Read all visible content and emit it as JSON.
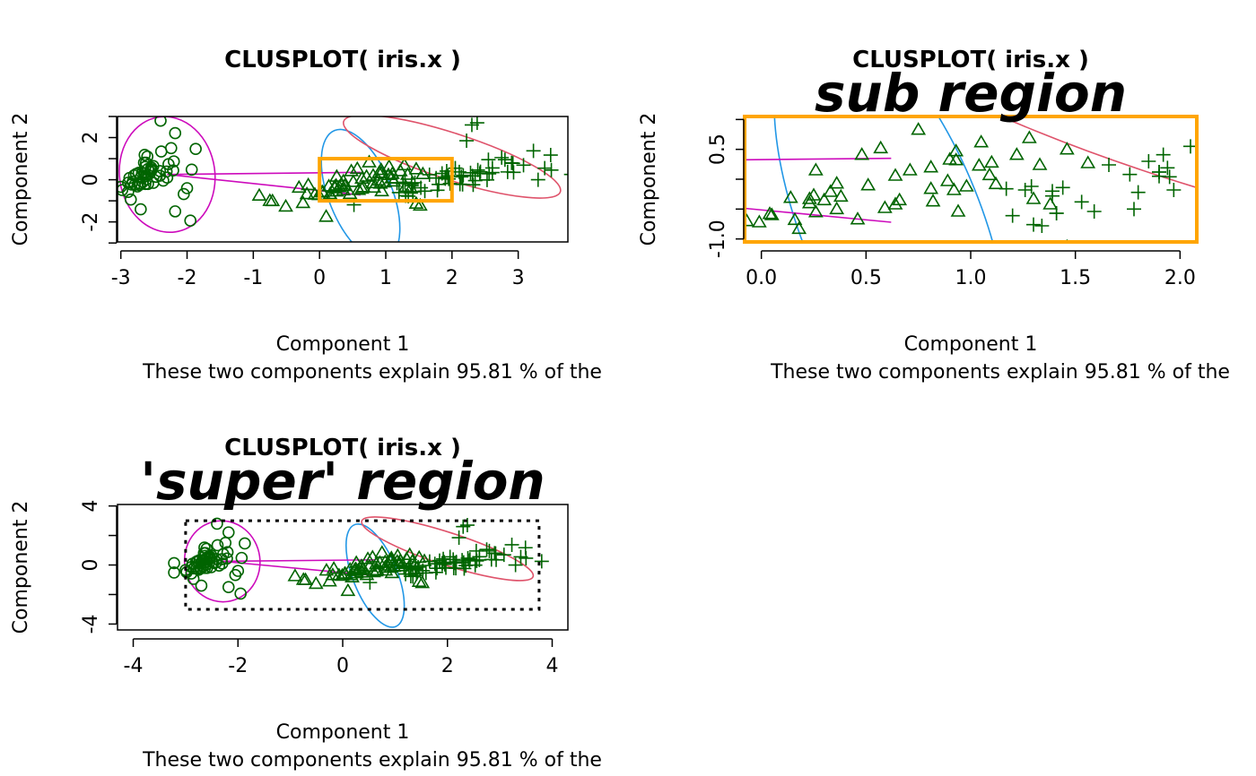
{
  "colors": {
    "points": "#006400",
    "ellipse_setosa": "#cd0bbc",
    "ellipse_versicolor": "#2297e6",
    "ellipse_virginica": "#df536b",
    "link": "#cd0bbc",
    "highlight": "#ffa500"
  },
  "chart_data": [
    {
      "type": "scatter",
      "panel": "main",
      "title": "CLUSPLOT( iris.x )",
      "xlabel": "Component 1",
      "ylabel": "Component 2",
      "subtitle": "These two components explain 95.81 % of the",
      "xlim": [
        -3.05,
        3.75
      ],
      "ylim": [
        -2.95,
        3.0
      ],
      "xticks": [
        -3,
        -2,
        -1,
        0,
        1,
        2,
        3
      ],
      "yticks": [
        -2,
        0,
        2
      ],
      "ytick_labels": [
        "-2",
        "0",
        "2"
      ],
      "yminor_ticks": [
        -3,
        -1,
        1,
        3
      ],
      "highlight_box": [
        0,
        2,
        -1,
        1
      ],
      "grid": false
    },
    {
      "type": "scatter",
      "panel": "sub",
      "title": "CLUSPLOT( iris.x )",
      "annotation": "sub region",
      "xlabel": "Component 1",
      "ylabel": "Component 2",
      "subtitle": "These two components explain 95.81 % of the",
      "xlim": [
        -0.08,
        2.08
      ],
      "ylim": [
        -1.05,
        1.05
      ],
      "xticks": [
        0.0,
        0.5,
        1.0,
        1.5,
        2.0
      ],
      "xtick_labels": [
        "0.0",
        "0.5",
        "1.0",
        "1.5",
        "2.0"
      ],
      "yticks": [
        -1.0,
        0.5
      ],
      "ytick_labels": [
        "-1.0",
        "0.5"
      ],
      "yminor_ticks": [
        1.0,
        0.0,
        -0.5
      ],
      "grid": false
    },
    {
      "type": "scatter",
      "panel": "super",
      "title": "CLUSPLOT( iris.x )",
      "annotation": "'super' region",
      "xlabel": "Component 1",
      "ylabel": "Component 2",
      "subtitle": "These two components explain 95.81 % of the",
      "xlim": [
        -4.3,
        4.3
      ],
      "ylim": [
        -4.4,
        4.1
      ],
      "xticks": [
        -4,
        -2,
        0,
        2,
        4
      ],
      "yticks": [
        -4,
        0,
        4
      ],
      "ytick_labels": [
        "-4",
        "0",
        "4"
      ],
      "yminor_ticks": [
        -2,
        2
      ],
      "dashed_box": [
        -3.0,
        3.75,
        -3.0,
        3.0
      ],
      "grid": false
    }
  ],
  "clusters": {
    "setosa": {
      "pch": "circle",
      "ellipse": {
        "cx": -2.3,
        "cy": 0.25,
        "rx": 0.72,
        "ry": 2.75,
        "angle": -8
      },
      "points": [
        [
          -2.68,
          0.32
        ],
        [
          -2.71,
          -0.18
        ],
        [
          -2.89,
          -0.14
        ],
        [
          -2.75,
          -0.32
        ],
        [
          -2.73,
          0.33
        ],
        [
          -2.28,
          0.74
        ],
        [
          -2.82,
          -0.09
        ],
        [
          -2.63,
          0.16
        ],
        [
          -2.89,
          -0.58
        ],
        [
          -2.67,
          -0.11
        ],
        [
          -2.51,
          0.65
        ],
        [
          -2.61,
          0.02
        ],
        [
          -2.79,
          -0.24
        ],
        [
          -3.22,
          -0.51
        ],
        [
          -2.64,
          1.18
        ],
        [
          -2.39,
          1.34
        ],
        [
          -2.62,
          0.81
        ],
        [
          -2.65,
          0.31
        ],
        [
          -2.2,
          0.87
        ],
        [
          -2.59,
          0.51
        ],
        [
          -2.31,
          0.39
        ],
        [
          -2.54,
          0.43
        ],
        [
          -3.22,
          0.13
        ],
        [
          -2.3,
          0.1
        ],
        [
          -2.36,
          -0.04
        ],
        [
          -2.51,
          -0.15
        ],
        [
          -2.47,
          0.14
        ],
        [
          -2.56,
          0.37
        ],
        [
          -2.64,
          0.31
        ],
        [
          -2.63,
          -0.2
        ],
        [
          -2.59,
          -0.2
        ],
        [
          -2.41,
          0.41
        ],
        [
          -2.65,
          0.81
        ],
        [
          -2.6,
          1.1
        ],
        [
          -2.67,
          -0.11
        ],
        [
          -2.87,
          0.08
        ],
        [
          -2.63,
          0.61
        ],
        [
          -2.8,
          0.21
        ],
        [
          -2.98,
          -0.49
        ],
        [
          -2.59,
          0.23
        ],
        [
          -2.77,
          0.27
        ],
        [
          -2.85,
          -0.94
        ],
        [
          -3.0,
          -0.34
        ],
        [
          -2.41,
          0.19
        ],
        [
          -2.21,
          0.44
        ],
        [
          -2.72,
          -0.25
        ],
        [
          -2.54,
          0.5
        ],
        [
          -2.84,
          -0.23
        ],
        [
          -2.54,
          0.58
        ],
        [
          -2.7,
          0.11
        ],
        [
          -1.95,
          -1.94
        ],
        [
          -2.18,
          2.21
        ],
        [
          -2.4,
          2.8
        ],
        [
          -1.87,
          1.46
        ],
        [
          -2.18,
          -1.5
        ],
        [
          -2.0,
          -0.4
        ],
        [
          -1.93,
          0.48
        ],
        [
          -2.05,
          -0.68
        ],
        [
          -2.24,
          1.5
        ],
        [
          -2.7,
          -1.4
        ]
      ]
    },
    "versicolor": {
      "pch": "triangle",
      "ellipse": {
        "cx": 0.62,
        "cy": -0.72,
        "rx": 1.05,
        "ry": 1.5,
        "angle": 68
      },
      "points": [
        [
          1.28,
          0.69
        ],
        [
          0.93,
          0.32
        ],
        [
          1.46,
          0.5
        ],
        [
          0.18,
          -0.83
        ],
        [
          1.09,
          0.07
        ],
        [
          0.64,
          -0.42
        ],
        [
          1.1,
          0.28
        ],
        [
          -0.75,
          -1.0
        ],
        [
          1.04,
          0.23
        ],
        [
          -0.01,
          -0.72
        ],
        [
          -0.51,
          -1.27
        ],
        [
          0.51,
          -0.1
        ],
        [
          0.26,
          -0.55
        ],
        [
          0.98,
          -0.12
        ],
        [
          -0.17,
          -0.25
        ],
        [
          0.93,
          0.47
        ],
        [
          0.66,
          -0.35
        ],
        [
          0.23,
          -0.33
        ],
        [
          0.94,
          -0.54
        ],
        [
          0.04,
          -0.58
        ],
        [
          1.12,
          -0.08
        ],
        [
          0.36,
          -0.07
        ],
        [
          1.3,
          -0.33
        ],
        [
          0.92,
          -0.18
        ],
        [
          0.71,
          0.15
        ],
        [
          0.9,
          0.33
        ],
        [
          1.33,
          0.24
        ],
        [
          1.56,
          0.27
        ],
        [
          0.81,
          -0.16
        ],
        [
          -0.31,
          -0.37
        ],
        [
          -0.07,
          -0.7
        ],
        [
          -0.19,
          -0.68
        ],
        [
          0.14,
          -0.31
        ],
        [
          1.38,
          -0.42
        ],
        [
          0.59,
          -0.48
        ],
        [
          0.81,
          0.2
        ],
        [
          1.22,
          0.41
        ],
        [
          0.82,
          -0.37
        ],
        [
          0.25,
          -0.27
        ],
        [
          0.16,
          -0.68
        ],
        [
          0.46,
          -0.67
        ],
        [
          0.89,
          -0.03
        ],
        [
          0.23,
          -0.4
        ],
        [
          -0.71,
          -1.01
        ],
        [
          0.36,
          -0.5
        ],
        [
          0.33,
          -0.21
        ],
        [
          0.38,
          -0.29
        ],
        [
          0.64,
          0.06
        ],
        [
          -0.91,
          -0.75
        ],
        [
          0.3,
          -0.35
        ],
        [
          1.46,
          -1.13
        ],
        [
          1.52,
          -1.22
        ],
        [
          0.1,
          -1.75
        ],
        [
          0.75,
          0.83
        ],
        [
          0.57,
          0.52
        ],
        [
          -0.25,
          -1.1
        ],
        [
          0.05,
          -0.6
        ],
        [
          1.05,
          0.62
        ],
        [
          0.48,
          0.41
        ],
        [
          0.26,
          0.15
        ]
      ]
    },
    "virginica": {
      "pch": "plus",
      "ellipse": {
        "cx": 2.0,
        "cy": 1.1,
        "rx": 1.72,
        "ry": 1.1,
        "angle": 18
      },
      "points": [
        [
          2.53,
          -0.01
        ],
        [
          1.41,
          -0.57
        ],
        [
          2.61,
          0.34
        ],
        [
          1.97,
          -0.18
        ],
        [
          2.35,
          -0.04
        ],
        [
          3.4,
          0.55
        ],
        [
          0.52,
          -1.19
        ],
        [
          2.93,
          0.35
        ],
        [
          2.32,
          -0.24
        ],
        [
          2.92,
          0.78
        ],
        [
          1.66,
          0.24
        ],
        [
          1.8,
          -0.22
        ],
        [
          2.17,
          0.21
        ],
        [
          1.34,
          -0.78
        ],
        [
          1.59,
          -0.54
        ],
        [
          1.9,
          0.12
        ],
        [
          1.95,
          0.04
        ],
        [
          3.49,
          1.17
        ],
        [
          3.8,
          0.25
        ],
        [
          1.3,
          -0.76
        ],
        [
          2.43,
          0.38
        ],
        [
          1.2,
          -0.61
        ],
        [
          3.5,
          0.46
        ],
        [
          1.39,
          -0.2
        ],
        [
          2.28,
          0.33
        ],
        [
          2.61,
          0.56
        ],
        [
          1.26,
          -0.18
        ],
        [
          1.29,
          -0.12
        ],
        [
          2.12,
          -0.21
        ],
        [
          2.39,
          0.46
        ],
        [
          2.84,
          0.37
        ],
        [
          3.23,
          1.37
        ],
        [
          2.16,
          -0.22
        ],
        [
          1.44,
          -0.14
        ],
        [
          1.78,
          -0.5
        ],
        [
          3.08,
          0.69
        ],
        [
          2.14,
          0.14
        ],
        [
          1.9,
          0.05
        ],
        [
          1.17,
          -0.16
        ],
        [
          2.11,
          0.37
        ],
        [
          2.31,
          0.18
        ],
        [
          1.92,
          0.41
        ],
        [
          1.41,
          -0.57
        ],
        [
          2.56,
          0.28
        ],
        [
          2.42,
          0.3
        ],
        [
          1.94,
          0.19
        ],
        [
          1.53,
          -0.38
        ],
        [
          1.76,
          0.08
        ],
        [
          1.9,
          0.12
        ],
        [
          1.39,
          -0.28
        ],
        [
          2.3,
          2.6
        ],
        [
          2.38,
          2.7
        ],
        [
          2.22,
          1.85
        ],
        [
          2.8,
          0.95
        ],
        [
          2.9,
          0.8
        ],
        [
          3.3,
          0.0
        ],
        [
          2.55,
          0.95
        ],
        [
          2.05,
          0.55
        ],
        [
          1.85,
          0.3
        ],
        [
          2.75,
          1.05
        ]
      ]
    },
    "links": [
      {
        "from": "setosa",
        "to": "versicolor",
        "points": [
          [
            -2.3,
            0.25
          ],
          [
            0.62,
            0.35
          ]
        ]
      },
      {
        "from": "setosa",
        "to": "versicolor",
        "points": [
          [
            -2.3,
            0.25
          ],
          [
            0.62,
            -0.72
          ]
        ]
      }
    ]
  }
}
